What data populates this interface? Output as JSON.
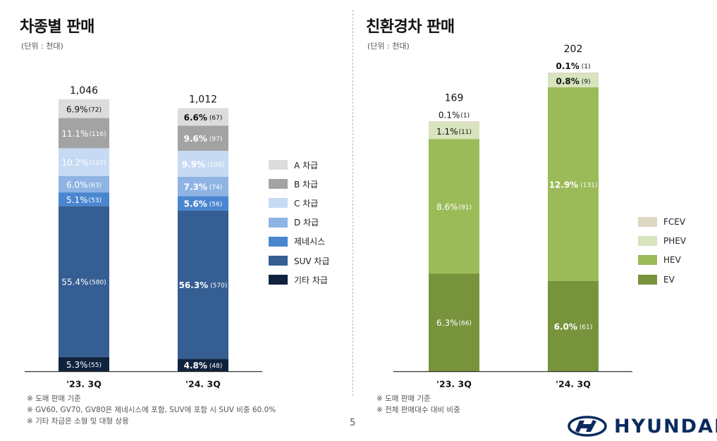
{
  "left": {
    "title": "차종별 판매",
    "unit": "(단위 : 천대)",
    "footnotes": [
      "※ 도매 판매 기준",
      "※ GV60, GV70, GV80은 제네시스에 포함, SUV에 포함 시 SUV 비중 60.0%",
      "※ 기타 차급은 소형 및 대형 상용"
    ]
  },
  "right": {
    "title": "친환경차 판매",
    "unit": "(단위 : 천대)",
    "footnotes": [
      "※ 도매 판매 기준",
      "※ 전체 판매대수 대비 비중"
    ]
  },
  "page_number": "5",
  "logo": {
    "text": "HYUNDAI",
    "color": "#0b2b5e"
  },
  "chart_data": [
    {
      "type": "bar",
      "stacked": true,
      "title": "차종별 판매",
      "categories": [
        "'23. 3Q",
        "'24. 3Q"
      ],
      "totals": [
        "1,046",
        "1,012"
      ],
      "ylim": [
        0,
        1046
      ],
      "emphasize_category": 1,
      "series": [
        {
          "name": "기타 차급",
          "color": "#0f233f",
          "light_text": true,
          "values": [
            55,
            48
          ],
          "labels": [
            "5.3%(55)",
            "4.8%(48)"
          ]
        },
        {
          "name": "SUV 차급",
          "color": "#355e92",
          "light_text": true,
          "values": [
            580,
            570
          ],
          "labels": [
            "55.4%(580)",
            "56.3%(570)"
          ]
        },
        {
          "name": "제네시스",
          "color": "#4a86d0",
          "light_text": true,
          "values": [
            53,
            56
          ],
          "labels": [
            "5.1%(53)",
            "5.6%(56)"
          ]
        },
        {
          "name": "D 차급",
          "color": "#8fb4e3",
          "light_text": true,
          "values": [
            63,
            74
          ],
          "labels": [
            "6.0%(63)",
            "7.3%(74)"
          ]
        },
        {
          "name": "C 차급",
          "color": "#c7daf3",
          "light_text": true,
          "values": [
            107,
            100
          ],
          "labels": [
            "10.2%(107)",
            "9.9%(100)"
          ]
        },
        {
          "name": "B 차급",
          "color": "#a3a3a3",
          "light_text": true,
          "values": [
            116,
            97
          ],
          "labels": [
            "11.1%(116)",
            "9.6%(97)"
          ]
        },
        {
          "name": "A 차급",
          "color": "#dcdcdc",
          "light_text": false,
          "values": [
            72,
            67
          ],
          "labels": [
            "6.9%(72)",
            "6.6%(67)"
          ]
        }
      ],
      "legend_order": [
        "A 차급",
        "B 차급",
        "C 차급",
        "D 차급",
        "제네시스",
        "SUV 차급",
        "기타 차급"
      ]
    },
    {
      "type": "bar",
      "stacked": true,
      "title": "친환경차 판매",
      "categories": [
        "'23. 3Q",
        "'24. 3Q"
      ],
      "totals": [
        "169",
        "202"
      ],
      "ylim": [
        0,
        202
      ],
      "emphasize_category": 1,
      "series": [
        {
          "name": "EV",
          "color": "#77933c",
          "light_text": true,
          "values": [
            66,
            61
          ],
          "labels": [
            "6.3%(66)",
            "6.0%(61)"
          ]
        },
        {
          "name": "HEV",
          "color": "#9bbb59",
          "light_text": true,
          "values": [
            91,
            131
          ],
          "labels": [
            "8.6%(91)",
            "12.9%(131)"
          ]
        },
        {
          "name": "PHEV",
          "color": "#d7e4bd",
          "light_text": false,
          "values": [
            11,
            9
          ],
          "labels": [
            "1.1%(11)",
            "0.8%(9)"
          ]
        },
        {
          "name": "FCEV",
          "color": "#ddd9c3",
          "light_text": false,
          "values": [
            1,
            1
          ],
          "labels": [
            "0.1%(1)",
            "0.1%(1)"
          ]
        }
      ],
      "legend_order": [
        "FCEV",
        "PHEV",
        "HEV",
        "EV"
      ]
    }
  ]
}
